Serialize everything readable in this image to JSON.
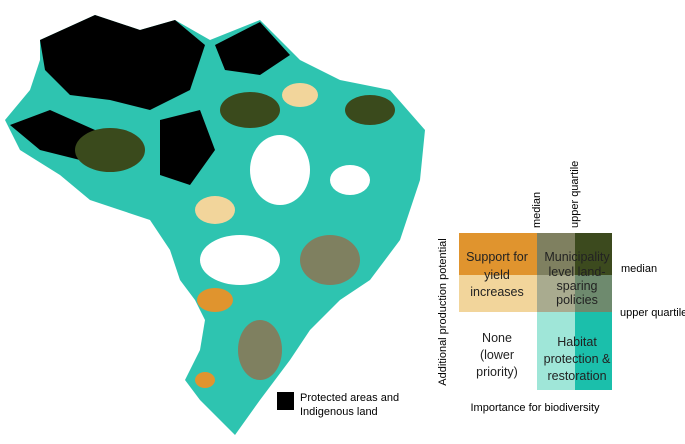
{
  "map": {
    "protected_legend": {
      "lines": [
        "Protected areas and",
        "Indigenous land"
      ]
    },
    "bivariate_legend": {
      "y_axis_label": "Additional production potential",
      "x_axis_label": "Importance for biodiversity",
      "column_thresholds": [
        "median",
        "upper quartile"
      ],
      "row_thresholds": [
        "median",
        "upper quartile"
      ],
      "cells": [
        {
          "lines": [
            "Support for",
            "yield",
            "increases"
          ]
        },
        {
          "lines": [
            "Municipality",
            "level land-",
            "sparing",
            "policies"
          ]
        },
        {
          "lines": [
            "None",
            "(lower",
            "priority)"
          ]
        },
        {
          "lines": [
            "Habitat",
            "protection &",
            "restoration"
          ]
        }
      ]
    }
  }
}
